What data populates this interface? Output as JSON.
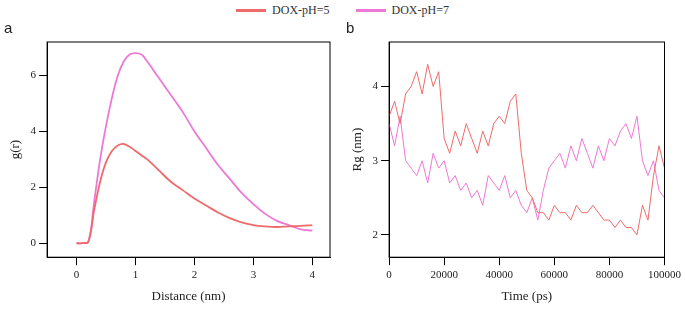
{
  "chart_data": [
    {
      "type": "line",
      "title": "a",
      "x_label": "Distance (nm)",
      "y_label": "g(r)",
      "x": [
        0,
        0.1,
        0.2,
        0.3,
        0.4,
        0.5,
        0.6,
        0.7,
        0.8,
        0.9,
        1.0,
        1.1,
        1.2,
        1.4,
        1.6,
        1.8,
        2.0,
        2.2,
        2.4,
        2.6,
        2.8,
        3.0,
        3.2,
        3.4,
        3.6,
        3.8,
        4.0
      ],
      "series": [
        {
          "name": "DOX-pH=5",
          "color": "#ef6b6b",
          "values": [
            0,
            0,
            0.05,
            1.2,
            2.2,
            2.9,
            3.3,
            3.5,
            3.55,
            3.45,
            3.3,
            3.15,
            3.0,
            2.6,
            2.2,
            1.9,
            1.6,
            1.35,
            1.1,
            0.9,
            0.75,
            0.65,
            0.6,
            0.58,
            0.6,
            0.62,
            0.65
          ]
        },
        {
          "name": "DOX-pH=7",
          "color": "#ee78d6",
          "values": [
            0,
            0,
            0.05,
            1.5,
            3.0,
            4.2,
            5.2,
            6.0,
            6.5,
            6.75,
            6.8,
            6.75,
            6.5,
            5.9,
            5.3,
            4.7,
            4.0,
            3.4,
            2.8,
            2.3,
            1.8,
            1.4,
            1.05,
            0.8,
            0.65,
            0.5,
            0.45
          ]
        }
      ],
      "xlim": [
        -0.5,
        4.3
      ],
      "xticks": [
        0,
        1,
        2,
        3,
        4
      ],
      "ylim": [
        -0.5,
        7.2
      ],
      "yticks": [
        0,
        2,
        4,
        6
      ],
      "grid": false,
      "legend": "top",
      "line_style": "smooth"
    },
    {
      "type": "line",
      "title": "b",
      "x_label": "Time (ps)",
      "y_label": "Rg (nm)",
      "x": [
        0,
        2000,
        4000,
        6000,
        8000,
        10000,
        12000,
        14000,
        16000,
        18000,
        20000,
        22000,
        24000,
        26000,
        28000,
        30000,
        32000,
        34000,
        36000,
        38000,
        40000,
        42000,
        44000,
        46000,
        48000,
        50000,
        52000,
        54000,
        56000,
        58000,
        60000,
        62000,
        64000,
        66000,
        68000,
        70000,
        72000,
        74000,
        76000,
        78000,
        80000,
        82000,
        84000,
        86000,
        88000,
        90000,
        92000,
        94000,
        96000,
        98000,
        100000
      ],
      "series": [
        {
          "name": "DOX-pH=5",
          "color": "#ef6b6b",
          "values": [
            3.6,
            3.8,
            3.5,
            3.9,
            4.0,
            4.2,
            3.9,
            4.3,
            4.0,
            4.2,
            3.3,
            3.1,
            3.4,
            3.2,
            3.5,
            3.3,
            3.1,
            3.4,
            3.2,
            3.5,
            3.6,
            3.5,
            3.8,
            3.9,
            3.1,
            2.6,
            2.5,
            2.3,
            2.3,
            2.2,
            2.4,
            2.3,
            2.3,
            2.2,
            2.4,
            2.3,
            2.3,
            2.4,
            2.3,
            2.2,
            2.2,
            2.1,
            2.2,
            2.1,
            2.1,
            2.0,
            2.4,
            2.2,
            2.8,
            3.2,
            2.9
          ]
        },
        {
          "name": "DOX-pH=7",
          "color": "#ee78d6",
          "values": [
            3.5,
            3.2,
            3.6,
            3.0,
            2.9,
            2.8,
            3.0,
            2.7,
            3.1,
            2.9,
            3.0,
            2.7,
            2.8,
            2.6,
            2.7,
            2.5,
            2.6,
            2.4,
            2.8,
            2.7,
            2.6,
            2.8,
            2.5,
            2.6,
            2.4,
            2.3,
            2.5,
            2.2,
            2.6,
            2.9,
            3.0,
            3.1,
            2.9,
            3.2,
            3.0,
            3.3,
            3.1,
            2.9,
            3.2,
            3.0,
            3.3,
            3.2,
            3.4,
            3.5,
            3.3,
            3.6,
            3.0,
            2.8,
            3.0,
            2.6,
            2.5
          ]
        }
      ],
      "xlim": [
        0,
        100000
      ],
      "xticks": [
        0,
        20000,
        40000,
        60000,
        80000,
        100000
      ],
      "ylim": [
        1.7,
        4.6
      ],
      "yticks": [
        2,
        3,
        4
      ],
      "grid": false,
      "legend": "top",
      "line_style": "straight"
    }
  ]
}
